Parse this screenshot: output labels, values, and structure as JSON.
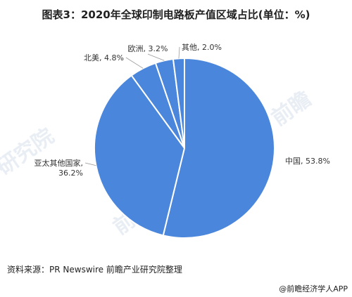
{
  "title": "图表3：2020年全球印制电路板产值区域占比(单位：%)",
  "chart_data": {
    "type": "pie",
    "title": "图表3：2020年全球印制电路板产值区域占比(单位：%)",
    "slices": [
      {
        "label": "中国, 53.8%",
        "name": "中国",
        "value": 53.8
      },
      {
        "label": "亚太其他国家,\n36.2%",
        "name": "亚太其他国家",
        "value": 36.2
      },
      {
        "label": "北美, 4.8%",
        "name": "北美",
        "value": 4.8
      },
      {
        "label": "欧洲, 3.2%",
        "name": "欧洲",
        "value": 3.2
      },
      {
        "label": "其他, 2.0%",
        "name": "其他",
        "value": 2.0
      }
    ],
    "start_angle_deg": 0,
    "direction": "clockwise",
    "colors": {
      "fill": "#4a86db",
      "edge": "#ffffff",
      "leader": "#999999"
    }
  },
  "source": "资料来源：PR Newswire 前瞻产业研究院整理",
  "brand": "@前瞻经济学人APP"
}
